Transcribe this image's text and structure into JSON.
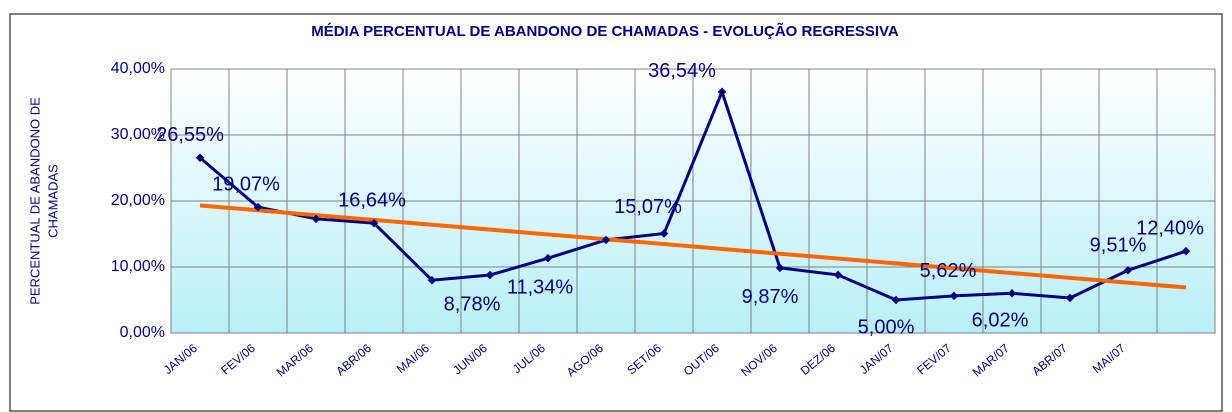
{
  "chart_data": {
    "type": "line",
    "title": "MÉDIA PERCENTUAL DE ABANDONO DE CHAMADAS - EVOLUÇÃO REGRESSIVA",
    "y_label": [
      "PERCENTUAL DE ABANDONO DE",
      "CHAMADAS"
    ],
    "categories": [
      "JAN/06",
      "FEV/06",
      "MAR/06",
      "ABR/06",
      "MAI/06",
      "JUN/06",
      "JUL/06",
      "AGO/06",
      "SET/06",
      "OUT/06",
      "NOV/06",
      "DEZ/06",
      "JAN/07",
      "FEV/07",
      "MAR/07",
      "ABR/07",
      "MAI/07",
      null
    ],
    "series": [
      {
        "name": "Abandono",
        "color": "#000080",
        "values": [
          26.55,
          19.07,
          17.3,
          16.64,
          8.0,
          8.78,
          11.34,
          14.1,
          15.07,
          36.54,
          9.87,
          8.8,
          5.0,
          5.62,
          6.02,
          5.3,
          9.51,
          12.4
        ],
        "value_labels": [
          "26,55%",
          "19,07%",
          null,
          "16,64%",
          null,
          "8,78%",
          "11,34%",
          null,
          "15,07%",
          "36,54%",
          "9,87%",
          null,
          "5,00%",
          "5,62%",
          "6,02%",
          null,
          "9,51%",
          "12,40%"
        ]
      }
    ],
    "trendline": {
      "color": "#ff6600"
    },
    "ylim": [
      0,
      40
    ],
    "yticks": [
      {
        "value": 0,
        "label": "0,00%"
      },
      {
        "value": 10,
        "label": "10,00%"
      },
      {
        "value": 20,
        "label": "20,00%"
      },
      {
        "value": 30,
        "label": "30,00%"
      },
      {
        "value": 40,
        "label": "40,00%"
      }
    ],
    "grid": true
  }
}
